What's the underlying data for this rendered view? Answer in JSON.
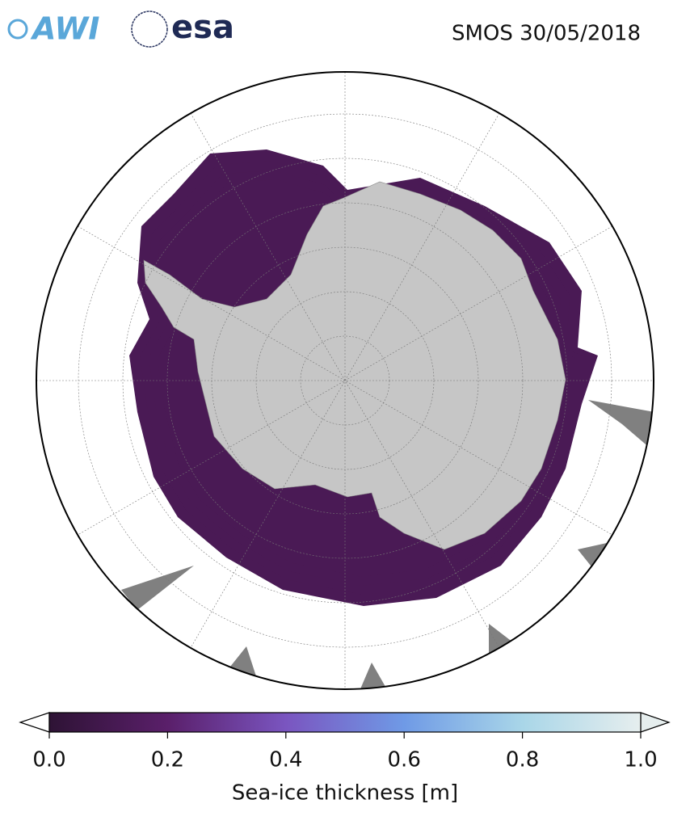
{
  "logos": {
    "awi": "AWI",
    "esa": "esa"
  },
  "title": "SMOS 30/05/2018",
  "colorbar": {
    "label": "Sea-ice thickness [m]",
    "lim": [
      0,
      1
    ],
    "ticks": [
      {
        "value": 0,
        "label": "0.0"
      },
      0.2,
      0.4,
      0.6,
      0.8,
      {
        "value": 1,
        "label": "1.0"
      }
    ],
    "colormap": [
      "#2e1335",
      "#5a1f6a",
      "#7a55c0",
      "#6f9ae6",
      "#a9d6e8",
      "#e6eeee"
    ]
  }
}
